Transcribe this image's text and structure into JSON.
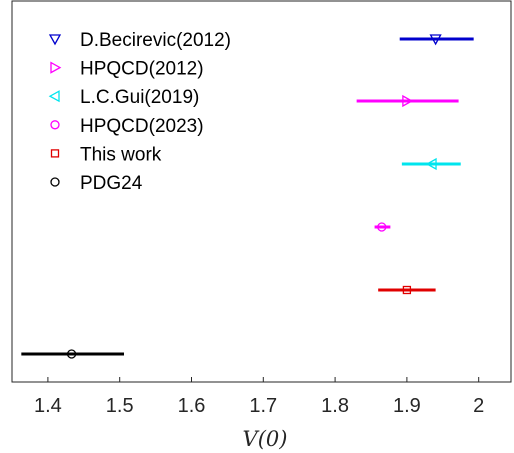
{
  "chart_data": {
    "type": "scatter",
    "xlabel": "V(0)",
    "xlim": [
      1.35,
      2.045
    ],
    "xticks": [
      1.4,
      1.5,
      1.6,
      1.7,
      1.8,
      1.9,
      2
    ],
    "xtick_labels": [
      "1.4",
      "1.5",
      "1.6",
      "1.7",
      "1.8",
      "1.9",
      "2"
    ],
    "grid": false,
    "legend_position": "top-left",
    "series": [
      {
        "name": "D.Becirevic(2012)",
        "value": 1.94,
        "err_low": 1.89,
        "err_high": 1.993,
        "marker": "triangle-down",
        "color": "#0000cd"
      },
      {
        "name": "HPQCD(2012)",
        "value": 1.9,
        "err_low": 1.83,
        "err_high": 1.972,
        "marker": "triangle-right",
        "color": "#ff00ff"
      },
      {
        "name": "L.C.Gui(2019)",
        "value": 1.935,
        "err_low": 1.893,
        "err_high": 1.975,
        "marker": "triangle-left",
        "color": "#00e5ee"
      },
      {
        "name": "HPQCD(2023)",
        "value": 1.865,
        "err_low": 1.855,
        "err_high": 1.877,
        "marker": "circle",
        "color": "#ff00ff"
      },
      {
        "name": "This work",
        "value": 1.9,
        "err_low": 1.86,
        "err_high": 1.94,
        "marker": "square",
        "color": "#e00000"
      },
      {
        "name": "PDG24",
        "value": 1.433,
        "err_low": 1.363,
        "err_high": 1.506,
        "marker": "circle",
        "color": "#000000"
      }
    ]
  }
}
